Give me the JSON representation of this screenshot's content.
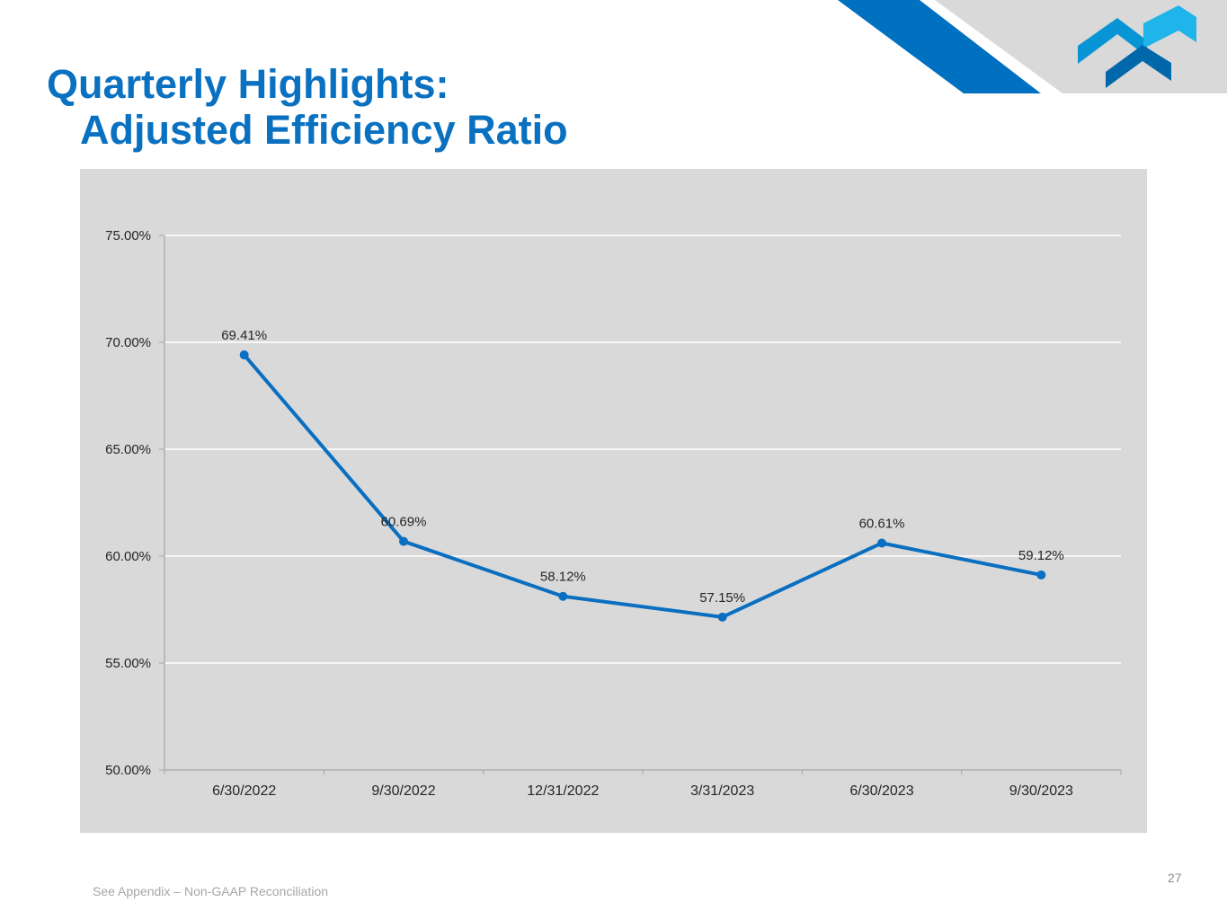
{
  "slide": {
    "title_line1": "Quarterly Highlights:",
    "title_line2": "Adjusted Efficiency Ratio",
    "footnote": "See Appendix – Non-GAAP Reconciliation",
    "page_number": "27",
    "logo_icon": "chevron-logo-icon",
    "colors": {
      "title": "#0a70c0",
      "banner_stripe": "#0070c0",
      "banner_gray": "#d9d9d9",
      "logo_light": "#1fb5ea",
      "logo_mid": "#0795d6",
      "logo_dark": "#0068aa",
      "line": "#0a6fc0",
      "panel": "#d9d9d9"
    }
  },
  "chart_data": {
    "type": "line",
    "title": "Adjusted Efficiency Ratio",
    "xlabel": "",
    "ylabel": "",
    "categories": [
      "6/30/2022",
      "9/30/2022",
      "12/31/2022",
      "3/31/2023",
      "6/30/2023",
      "9/30/2023"
    ],
    "series": [
      {
        "name": "Adjusted Efficiency Ratio",
        "values": [
          69.41,
          60.69,
          58.12,
          57.15,
          60.61,
          59.12
        ],
        "labels": [
          "69.41%",
          "60.69%",
          "58.12%",
          "57.15%",
          "60.61%",
          "59.12%"
        ]
      }
    ],
    "ylim": [
      50,
      75
    ],
    "yticks": [
      50,
      55,
      60,
      65,
      70,
      75
    ],
    "ytick_labels": [
      "50.00%",
      "55.00%",
      "60.00%",
      "65.00%",
      "70.00%",
      "75.00%"
    ],
    "grid": true,
    "legend": "none"
  }
}
